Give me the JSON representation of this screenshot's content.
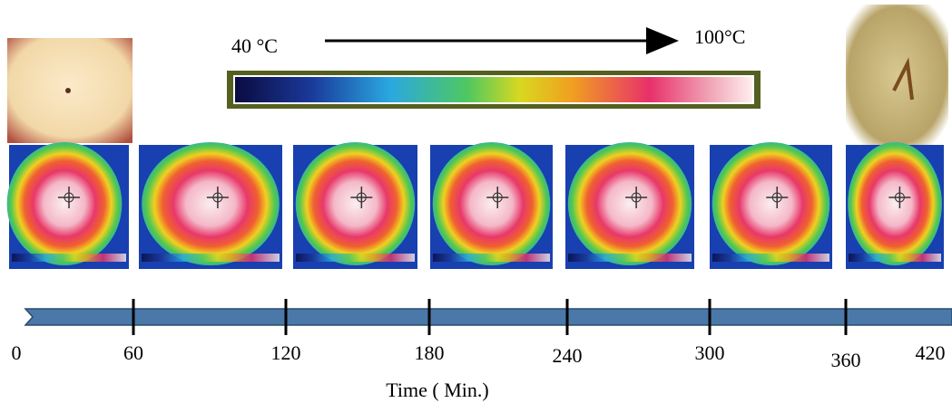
{
  "color_scale": {
    "min_label": "40 °C",
    "max_label": "100°C"
  },
  "timeline": {
    "ticks": [
      0,
      60,
      120,
      180,
      240,
      300,
      360,
      420
    ],
    "axis_label": "Time ( Min.)"
  }
}
